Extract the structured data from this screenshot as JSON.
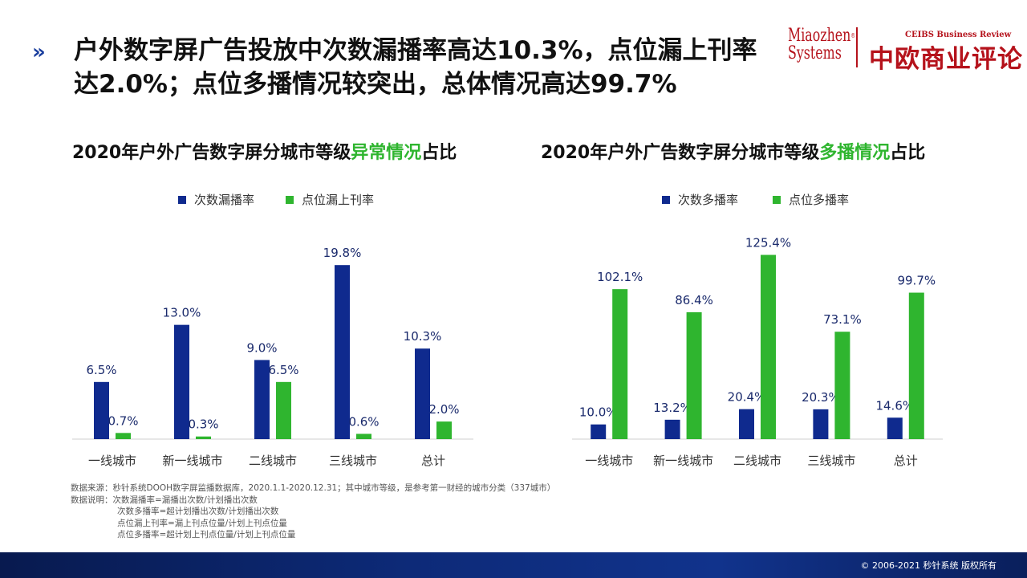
{
  "headline": "户外数字屏广告投放中次数漏播率高达10.3%，点位漏上刊率达2.0%；点位多播情况较突出，总体情况高达99.7%",
  "logos": {
    "miaozhen_line1": "Miaozhen",
    "miaozhen_line2": "Systems",
    "miaozhen_reg": "®",
    "ceibs_en": "CEIBS Business Review",
    "ceibs_cn": "中欧商业评论"
  },
  "chart_left_title": {
    "prefix": "2020年户外广告数字屏分城市等级",
    "highlight": "异常情况",
    "suffix": "占比"
  },
  "chart_right_title": {
    "prefix": "2020年户外广告数字屏分城市等级",
    "highlight": "多播情况",
    "suffix": "占比"
  },
  "colors": {
    "blue": "#0f2a8e",
    "green": "#2fb52f",
    "highlight": "#2fb52f"
  },
  "chart_data": [
    {
      "type": "bar",
      "categories": [
        "一线城市",
        "新一线城市",
        "二线城市",
        "三线城市",
        "总计"
      ],
      "series": [
        {
          "name": "次数漏播率",
          "color": "#0f2a8e",
          "values": [
            6.5,
            13.0,
            9.0,
            19.8,
            10.3
          ],
          "labels": [
            "6.5%",
            "13.0%",
            "9.0%",
            "19.8%",
            "10.3%"
          ]
        },
        {
          "name": "点位漏上刊率",
          "color": "#2fb52f",
          "values": [
            0.7,
            0.3,
            6.5,
            0.6,
            2.0
          ],
          "labels": [
            "0.7%",
            "0.3%",
            "6.5%",
            "0.6%",
            "2.0%"
          ]
        }
      ],
      "title": "2020年户外广告数字屏分城市等级异常情况占比",
      "legend_position": "top-center",
      "grid": false
    },
    {
      "type": "bar",
      "categories": [
        "一线城市",
        "新一线城市",
        "二线城市",
        "三线城市",
        "总计"
      ],
      "series": [
        {
          "name": "次数多播率",
          "color": "#0f2a8e",
          "values": [
            10.0,
            13.2,
            20.4,
            20.3,
            14.6
          ],
          "labels": [
            "10.0%",
            "13.2%",
            "20.4%",
            "20.3%",
            "14.6%"
          ]
        },
        {
          "name": "点位多播率",
          "color": "#2fb52f",
          "values": [
            102.1,
            86.4,
            125.4,
            73.1,
            99.7
          ],
          "labels": [
            "102.1%",
            "86.4%",
            "125.4%",
            "73.1%",
            "99.7%"
          ]
        }
      ],
      "title": "2020年户外广告数字屏分城市等级多播情况占比",
      "legend_position": "top-center",
      "grid": false
    }
  ],
  "notes": [
    "数据来源：秒针系统DOOH数字屏监播数据库，2020.1.1-2020.12.31；其中城市等级，是参考第一财经的城市分类（337城市）",
    "数据说明：次数漏播率=漏播出次数/计划播出次数",
    "次数多播率=超计划播出次数/计划播出次数",
    "点位漏上刊率=漏上刊点位量/计划上刊点位量",
    "点位多播率=超计划上刊点位量/计划上刊点位量"
  ],
  "footer": "© 2006-2021 秒针系统 版权所有"
}
